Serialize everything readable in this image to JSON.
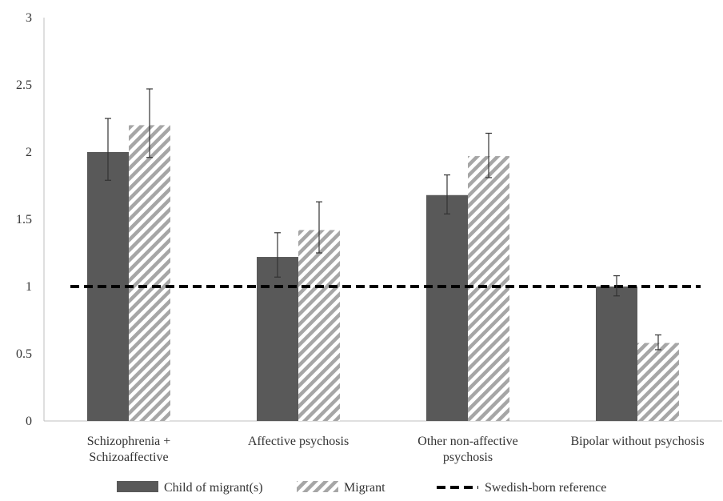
{
  "chart_data": {
    "type": "bar",
    "categories": [
      [
        "Schizophrenia +",
        "Schizoaffective"
      ],
      [
        "Affective psychosis"
      ],
      [
        "Other non-affective",
        "psychosis"
      ],
      [
        "Bipolar without psychosis"
      ]
    ],
    "series": [
      {
        "name": "Child of migrant(s)",
        "values": [
          2.0,
          1.22,
          1.68,
          1.0
        ],
        "ci_low": [
          1.79,
          1.07,
          1.54,
          0.93
        ],
        "ci_high": [
          2.25,
          1.4,
          1.83,
          1.08
        ],
        "color": "#595959",
        "pattern": "solid"
      },
      {
        "name": "Migrant",
        "values": [
          2.2,
          1.42,
          1.97,
          0.58
        ],
        "ci_low": [
          1.96,
          1.25,
          1.81,
          0.53
        ],
        "ci_high": [
          2.47,
          1.63,
          2.14,
          0.64
        ],
        "color": "#a6a6a6",
        "pattern": "diagonal-hatch"
      }
    ],
    "reference": {
      "name": "Swedish-born reference",
      "value": 1,
      "style": "dashed",
      "color": "#000000"
    },
    "yticks": [
      "0",
      "0.5",
      "1",
      "1.5",
      "2",
      "2.5",
      "3"
    ],
    "ylim": [
      0,
      3
    ],
    "title": "",
    "xlabel": "",
    "ylabel": "",
    "grid": false,
    "legend_position": "bottom"
  }
}
